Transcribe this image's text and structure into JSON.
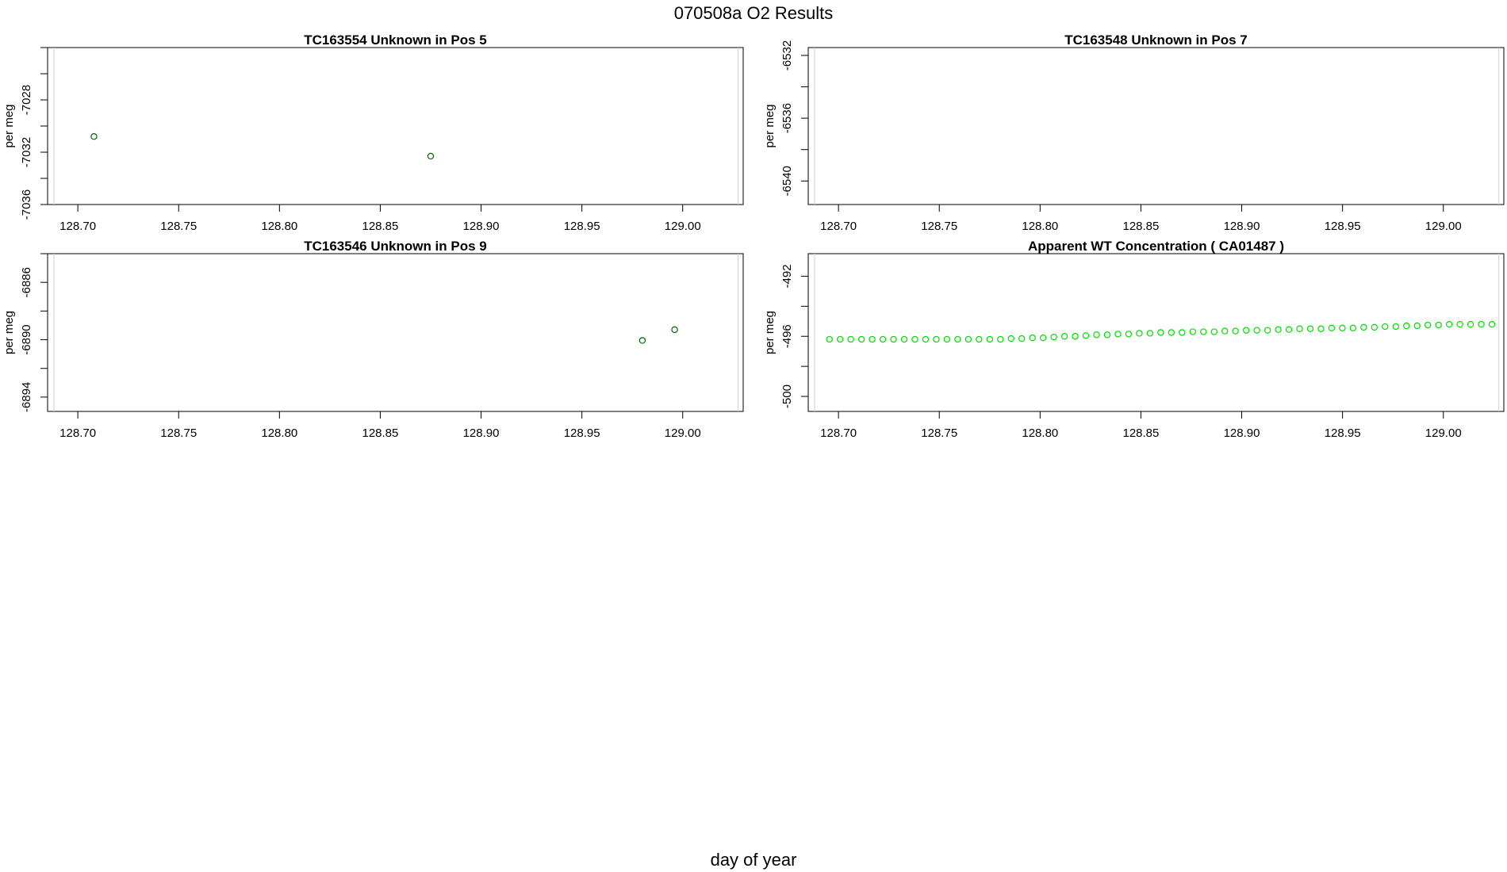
{
  "figure": {
    "title": "070508a  O2 Results",
    "xlabel": "day of year"
  },
  "chart_data": [
    {
      "type": "scatter",
      "title": "TC163554    Unknown in Pos 5",
      "xlabel": "",
      "ylabel": "per meg",
      "xlim": [
        128.685,
        129.03
      ],
      "ylim": [
        -7036,
        -7024
      ],
      "xticks": [
        "128.70",
        "128.75",
        "128.80",
        "128.85",
        "128.90",
        "128.95",
        "129.00"
      ],
      "yticks": [
        "-7028",
        "-7032",
        "-7036"
      ],
      "reference_x": 129.0275,
      "marker_color": "#006400",
      "series": [
        {
          "x": [
            128.708,
            128.875
          ],
          "y": [
            -7030.8,
            -7032.3
          ]
        }
      ]
    },
    {
      "type": "scatter",
      "title": "TC163548    Unknown in Pos 7",
      "xlabel": "",
      "ylabel": "per meg",
      "xlim": [
        128.685,
        129.03
      ],
      "ylim": [
        -6541.5,
        -6531.5
      ],
      "xticks": [
        "128.70",
        "128.75",
        "128.80",
        "128.85",
        "128.90",
        "128.95",
        "129.00"
      ],
      "yticks": [
        "-6532",
        "-6536",
        "-6540"
      ],
      "reference_x": 129.0275,
      "marker_color": "#006400",
      "series": [
        {
          "x": [],
          "y": []
        }
      ]
    },
    {
      "type": "scatter",
      "title": "TC163546    Unknown in Pos 9",
      "xlabel": "",
      "ylabel": "per meg",
      "xlim": [
        128.685,
        129.03
      ],
      "ylim": [
        -6895,
        -6884
      ],
      "xticks": [
        "128.70",
        "128.75",
        "128.80",
        "128.85",
        "128.90",
        "128.95",
        "129.00"
      ],
      "yticks": [
        "-6886",
        "-6890",
        "-6894"
      ],
      "reference_x": 129.0275,
      "marker_color": "#006400",
      "series": [
        {
          "x": [
            128.98,
            128.996
          ],
          "y": [
            -6890.05,
            -6889.3
          ]
        }
      ]
    },
    {
      "type": "scatter",
      "title": "Apparent WT Concentration ( CA01487 )",
      "xlabel": "",
      "ylabel": "per meg",
      "xlim": [
        128.685,
        129.03
      ],
      "ylim": [
        -501,
        -490.5
      ],
      "xticks": [
        "128.70",
        "128.75",
        "128.80",
        "128.85",
        "128.90",
        "128.95",
        "129.00"
      ],
      "yticks": [
        "-492",
        "-496",
        "-500"
      ],
      "reference_x": 129.0275,
      "marker_color": "#00dd00",
      "series": [
        {
          "x": [
            128.6955,
            128.7008,
            128.7061,
            128.7114,
            128.7167,
            128.722,
            128.7273,
            128.7326,
            128.7379,
            128.7432,
            128.7485,
            128.7538,
            128.7591,
            128.7644,
            128.7697,
            128.775,
            128.7803,
            128.7856,
            128.7909,
            128.7962,
            128.8015,
            128.8068,
            128.8121,
            128.8174,
            128.8227,
            128.828,
            128.8333,
            128.8386,
            128.8439,
            128.8492,
            128.8545,
            128.8598,
            128.8651,
            128.8704,
            128.8757,
            128.881,
            128.8863,
            128.8916,
            128.8969,
            128.9022,
            128.9075,
            128.9128,
            128.9181,
            128.9234,
            128.9287,
            128.934,
            128.9393,
            128.9446,
            128.9499,
            128.9552,
            128.9605,
            128.9658,
            128.9711,
            128.9764,
            128.9817,
            128.987,
            128.9923,
            128.9976,
            129.0029,
            129.0082,
            129.0135,
            129.0188,
            129.0241
          ],
          "y": [
            -496.2,
            -496.2,
            -496.2,
            -496.2,
            -496.2,
            -496.2,
            -496.2,
            -496.2,
            -496.2,
            -496.2,
            -496.2,
            -496.2,
            -496.2,
            -496.2,
            -496.2,
            -496.2,
            -496.2,
            -496.15,
            -496.15,
            -496.1,
            -496.1,
            -496.05,
            -496.0,
            -496.0,
            -495.95,
            -495.9,
            -495.9,
            -495.85,
            -495.85,
            -495.8,
            -495.8,
            -495.75,
            -495.75,
            -495.75,
            -495.7,
            -495.7,
            -495.7,
            -495.65,
            -495.65,
            -495.6,
            -495.6,
            -495.6,
            -495.55,
            -495.55,
            -495.5,
            -495.5,
            -495.5,
            -495.45,
            -495.45,
            -495.45,
            -495.4,
            -495.4,
            -495.35,
            -495.35,
            -495.3,
            -495.3,
            -495.25,
            -495.25,
            -495.2,
            -495.2,
            -495.2,
            -495.2,
            -495.2
          ]
        }
      ]
    }
  ]
}
